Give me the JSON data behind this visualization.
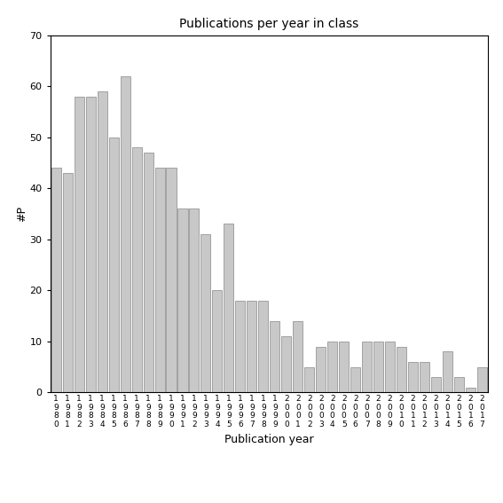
{
  "title": "Publications per year in class",
  "xlabel": "Publication year",
  "ylabel": "#P",
  "ylim": [
    0,
    70
  ],
  "yticks": [
    0,
    10,
    20,
    30,
    40,
    50,
    60,
    70
  ],
  "bar_color": "#c8c8c8",
  "bar_edgecolor": "#888888",
  "categories": [
    "1980",
    "1981",
    "1982",
    "1983",
    "1984",
    "1985",
    "1986",
    "1987",
    "1988",
    "1989",
    "1990",
    "1991",
    "1992",
    "1993",
    "1994",
    "1995",
    "1996",
    "1997",
    "1998",
    "1999",
    "2000",
    "2001",
    "2002",
    "2003",
    "2004",
    "2005",
    "2006",
    "2007",
    "2008",
    "2009",
    "2010",
    "2011",
    "2012",
    "2013",
    "2014",
    "2015",
    "2016",
    "2017"
  ],
  "values": [
    44,
    43,
    58,
    58,
    59,
    50,
    62,
    48,
    47,
    44,
    44,
    36,
    36,
    31,
    20,
    33,
    18,
    18,
    18,
    14,
    11,
    14,
    5,
    9,
    10,
    10,
    5,
    10,
    10,
    10,
    9,
    6,
    6,
    3,
    8,
    3,
    1,
    5
  ],
  "background_color": "#ffffff",
  "title_fontsize": 10,
  "label_fontsize": 9,
  "tick_fontsize": 8,
  "xtick_fontsize": 6.5
}
